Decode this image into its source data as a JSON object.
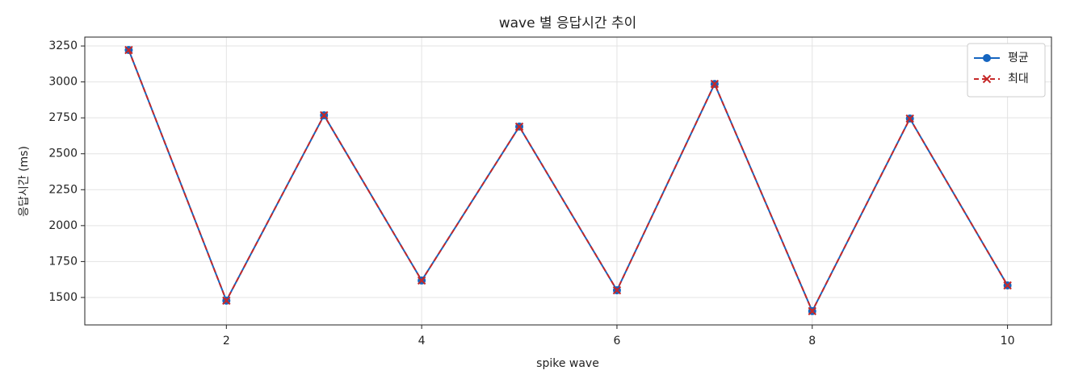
{
  "chart_data": {
    "type": "line",
    "title": "wave 별 응답시간 추이",
    "x_label": "spike wave",
    "y_label": "응답시간 (ms)",
    "x": [
      1,
      2,
      3,
      4,
      5,
      6,
      7,
      8,
      9,
      10
    ],
    "series": [
      {
        "name": "평균",
        "color": "#1565c0",
        "marker": "circle",
        "dash": "solid",
        "values": [
          3222,
          1478,
          2768,
          1618,
          2689,
          1550,
          2986,
          1405,
          2745,
          1584
        ]
      },
      {
        "name": "최대",
        "color": "#c62828",
        "marker": "x",
        "dash": "dashed",
        "values": [
          3222,
          1478,
          2768,
          1618,
          2689,
          1550,
          2986,
          1405,
          2745,
          1584
        ]
      }
    ],
    "xlim": [
      0.55,
      10.45
    ],
    "xticks": [
      2,
      4,
      6,
      8,
      10
    ],
    "ylim": [
      1309,
      3312
    ],
    "yticks": [
      1500,
      1750,
      2000,
      2250,
      2500,
      2750,
      3000,
      3250
    ],
    "grid": true,
    "legend_position": "upper right"
  }
}
